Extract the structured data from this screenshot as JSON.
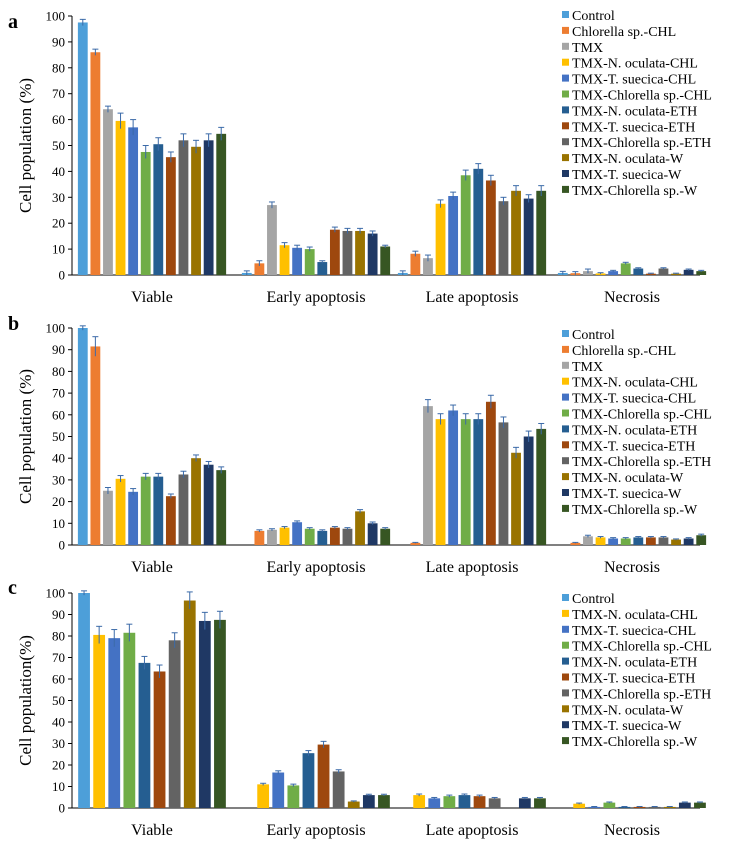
{
  "chart_data": [
    {
      "type": "bar",
      "panel": "a",
      "ylabel": "Cell population (%)",
      "ylim": [
        0,
        100
      ],
      "ystep": 10,
      "categories": [
        "Viable",
        "Early apoptosis",
        "Late apoptosis",
        "Necrosis"
      ],
      "series": [
        {
          "name": "Control",
          "color": "#4d9fd9",
          "values": [
            97.5,
            0.8,
            0.8,
            0.8
          ],
          "errors": [
            1.2,
            0.8,
            0.8,
            0.6
          ]
        },
        {
          "name": "Chlorella sp.-CHL",
          "color": "#ed7d31",
          "values": [
            86,
            4.5,
            8.2,
            0.7
          ],
          "errors": [
            1.2,
            1,
            1,
            0.6
          ]
        },
        {
          "name": "TMX",
          "color": "#a5a5a5",
          "values": [
            64,
            27,
            6.5,
            1.5
          ],
          "errors": [
            1.2,
            1.2,
            1.2,
            0.8
          ]
        },
        {
          "name": "TMX-N. oculata-CHL",
          "color": "#ffc000",
          "values": [
            59.5,
            11.5,
            27.5,
            0.6
          ],
          "errors": [
            3,
            1,
            1.5,
            0.3
          ]
        },
        {
          "name": "TMX-T. suecica-CHL",
          "color": "#4472c4",
          "values": [
            57,
            10.5,
            30.5,
            1.5
          ],
          "errors": [
            3,
            1,
            1.5,
            0.3
          ]
        },
        {
          "name": "TMX-Chlorella sp.-CHL",
          "color": "#70ad47",
          "values": [
            47.5,
            10,
            38.5,
            4.5
          ],
          "errors": [
            2.5,
            0.8,
            2,
            0.4
          ]
        },
        {
          "name": "TMX-N. oculata-ETH",
          "color": "#255e91",
          "values": [
            50.5,
            5,
            41,
            2.5
          ],
          "errors": [
            2.5,
            0.5,
            2,
            0.3
          ]
        },
        {
          "name": "TMX-T. suecica-ETH",
          "color": "#9e480e",
          "values": [
            45.5,
            17.5,
            36.5,
            0.5
          ],
          "errors": [
            2,
            1,
            2,
            0.2
          ]
        },
        {
          "name": "TMX-Chlorella sp.-ETH",
          "color": "#636363",
          "values": [
            52,
            17,
            28.5,
            2.5
          ],
          "errors": [
            2.5,
            1,
            1.5,
            0.3
          ]
        },
        {
          "name": "TMX-N. oculata-W",
          "color": "#997300",
          "values": [
            49.5,
            17,
            32.5,
            0.5
          ],
          "errors": [
            2.5,
            1,
            2,
            0.2
          ]
        },
        {
          "name": "TMX-T. suecica-W",
          "color": "#1f3864",
          "values": [
            52,
            16,
            29.5,
            2
          ],
          "errors": [
            2.5,
            1,
            1.5,
            0.3
          ]
        },
        {
          "name": "TMX-Chlorella sp.-W",
          "color": "#375623",
          "values": [
            54.5,
            11,
            32.5,
            1.5
          ],
          "errors": [
            2.5,
            0.5,
            2,
            0.3
          ]
        }
      ]
    },
    {
      "type": "bar",
      "panel": "b",
      "ylabel": "Cell population (%)",
      "ylim": [
        0,
        100
      ],
      "ystep": 10,
      "categories": [
        "Viable",
        "Early apoptosis",
        "Late apoptosis",
        "Necrosis"
      ],
      "series": [
        {
          "name": "Control",
          "color": "#4d9fd9",
          "values": [
            100,
            0,
            0,
            0
          ],
          "errors": [
            1,
            0,
            0,
            0
          ]
        },
        {
          "name": "Chlorella sp.-CHL",
          "color": "#ed7d31",
          "values": [
            91.5,
            6.5,
            1,
            1
          ],
          "errors": [
            4.5,
            0.5,
            0.2,
            0.2
          ]
        },
        {
          "name": "TMX",
          "color": "#a5a5a5",
          "values": [
            25,
            7,
            64,
            4
          ],
          "errors": [
            1.5,
            0.5,
            3,
            0.5
          ]
        },
        {
          "name": "TMX-N. oculata-CHL",
          "color": "#ffc000",
          "values": [
            30.5,
            8,
            58,
            3.5
          ],
          "errors": [
            1.5,
            0.5,
            2.5,
            0.4
          ]
        },
        {
          "name": "TMX-T. suecica-CHL",
          "color": "#4472c4",
          "values": [
            24.5,
            10.5,
            62,
            3
          ],
          "errors": [
            1.5,
            0.6,
            2.5,
            0.4
          ]
        },
        {
          "name": "TMX-Chlorella sp.-CHL",
          "color": "#70ad47",
          "values": [
            31.5,
            7.5,
            58,
            3
          ],
          "errors": [
            1.5,
            0.5,
            2.5,
            0.4
          ]
        },
        {
          "name": "TMX-N. oculata-ETH",
          "color": "#255e91",
          "values": [
            31.5,
            6.5,
            58,
            3.5
          ],
          "errors": [
            1.5,
            0.5,
            2.5,
            0.4
          ]
        },
        {
          "name": "TMX-T. suecica-ETH",
          "color": "#9e480e",
          "values": [
            22.5,
            8,
            66,
            3.5
          ],
          "errors": [
            1,
            0.5,
            3,
            0.4
          ]
        },
        {
          "name": "TMX-Chlorella sp.-ETH",
          "color": "#636363",
          "values": [
            32.5,
            7.5,
            56.5,
            3.5
          ],
          "errors": [
            1.5,
            0.5,
            2.5,
            0.4
          ]
        },
        {
          "name": "TMX-N. oculata-W",
          "color": "#997300",
          "values": [
            40,
            15.5,
            42.5,
            2.5
          ],
          "errors": [
            1.5,
            0.8,
            2.5,
            0.3
          ]
        },
        {
          "name": "TMX-T. suecica-W",
          "color": "#1f3864",
          "values": [
            37,
            10,
            50,
            3
          ],
          "errors": [
            1.5,
            0.6,
            2.5,
            0.4
          ]
        },
        {
          "name": "TMX-Chlorella sp.-W",
          "color": "#375623",
          "values": [
            34.5,
            7.5,
            53.5,
            4.5
          ],
          "errors": [
            1.5,
            0.5,
            2.5,
            0.5
          ]
        }
      ]
    },
    {
      "type": "bar",
      "panel": "c",
      "ylabel": "Cell population(%)",
      "ylim": [
        0,
        100
      ],
      "ystep": 10,
      "categories": [
        "Viable",
        "Early apoptosis",
        "Late apoptosis",
        "Necrosis"
      ],
      "series": [
        {
          "name": "Control",
          "color": "#4d9fd9",
          "values": [
            100,
            0,
            0,
            0
          ],
          "errors": [
            1,
            0,
            0,
            0
          ]
        },
        {
          "name": "TMX-N. oculata-CHL",
          "color": "#ffc000",
          "values": [
            80.5,
            11,
            6,
            2
          ],
          "errors": [
            4,
            0.5,
            0.5,
            0.3
          ]
        },
        {
          "name": "TMX-T. suecica-CHL",
          "color": "#4472c4",
          "values": [
            79,
            16.5,
            4.5,
            0.5
          ],
          "errors": [
            4,
            0.8,
            0.4,
            0.2
          ]
        },
        {
          "name": "TMX-Chlorella sp.-CHL",
          "color": "#70ad47",
          "values": [
            81.5,
            10.5,
            5.5,
            2.5
          ],
          "errors": [
            4,
            0.6,
            0.5,
            0.3
          ]
        },
        {
          "name": "TMX-N. oculata-ETH",
          "color": "#255e91",
          "values": [
            67.5,
            25.5,
            6,
            0.5
          ],
          "errors": [
            3,
            1.2,
            0.5,
            0.2
          ]
        },
        {
          "name": "TMX-T. suecica-ETH",
          "color": "#9e480e",
          "values": [
            63.5,
            29.5,
            5.5,
            0.5
          ],
          "errors": [
            3,
            1.5,
            0.5,
            0.2
          ]
        },
        {
          "name": "TMX-Chlorella sp.-ETH",
          "color": "#636363",
          "values": [
            78,
            17,
            4.5,
            0.5
          ],
          "errors": [
            3.5,
            0.8,
            0.4,
            0.2
          ]
        },
        {
          "name": "TMX-N. oculata-W",
          "color": "#997300",
          "values": [
            96.5,
            3,
            0,
            0.5
          ],
          "errors": [
            4,
            0.3,
            0,
            0.2
          ]
        },
        {
          "name": "TMX-T. suecica-W",
          "color": "#1f3864",
          "values": [
            87,
            6,
            4.5,
            2.5
          ],
          "errors": [
            4,
            0.4,
            0.4,
            0.3
          ]
        },
        {
          "name": "TMX-Chlorella sp.-W",
          "color": "#375623",
          "values": [
            87.5,
            6,
            4.5,
            2.5
          ],
          "errors": [
            4,
            0.4,
            0.4,
            0.3
          ]
        }
      ]
    }
  ]
}
